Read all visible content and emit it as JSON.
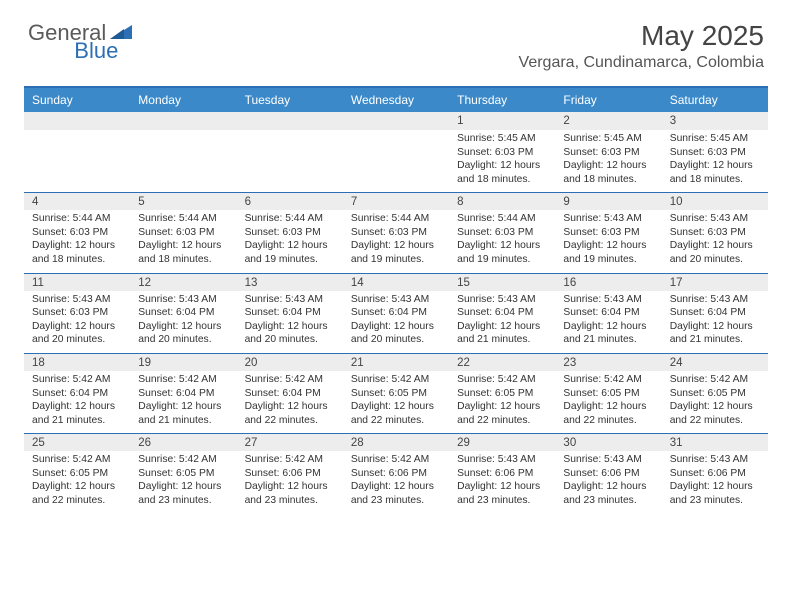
{
  "logo": {
    "text1": "General",
    "text2": "Blue"
  },
  "title": "May 2025",
  "location": "Vergara, Cundinamarca, Colombia",
  "colors": {
    "header_bg": "#3b89c9",
    "border": "#2c6fb5",
    "daynum_bg": "#ededed",
    "logo_gray": "#5a5a5a",
    "logo_blue": "#2c6fb5"
  },
  "day_names": [
    "Sunday",
    "Monday",
    "Tuesday",
    "Wednesday",
    "Thursday",
    "Friday",
    "Saturday"
  ],
  "weeks": [
    [
      null,
      null,
      null,
      null,
      {
        "n": "1",
        "sr": "5:45 AM",
        "ss": "6:03 PM",
        "dl": "12 hours and 18 minutes."
      },
      {
        "n": "2",
        "sr": "5:45 AM",
        "ss": "6:03 PM",
        "dl": "12 hours and 18 minutes."
      },
      {
        "n": "3",
        "sr": "5:45 AM",
        "ss": "6:03 PM",
        "dl": "12 hours and 18 minutes."
      }
    ],
    [
      {
        "n": "4",
        "sr": "5:44 AM",
        "ss": "6:03 PM",
        "dl": "12 hours and 18 minutes."
      },
      {
        "n": "5",
        "sr": "5:44 AM",
        "ss": "6:03 PM",
        "dl": "12 hours and 18 minutes."
      },
      {
        "n": "6",
        "sr": "5:44 AM",
        "ss": "6:03 PM",
        "dl": "12 hours and 19 minutes."
      },
      {
        "n": "7",
        "sr": "5:44 AM",
        "ss": "6:03 PM",
        "dl": "12 hours and 19 minutes."
      },
      {
        "n": "8",
        "sr": "5:44 AM",
        "ss": "6:03 PM",
        "dl": "12 hours and 19 minutes."
      },
      {
        "n": "9",
        "sr": "5:43 AM",
        "ss": "6:03 PM",
        "dl": "12 hours and 19 minutes."
      },
      {
        "n": "10",
        "sr": "5:43 AM",
        "ss": "6:03 PM",
        "dl": "12 hours and 20 minutes."
      }
    ],
    [
      {
        "n": "11",
        "sr": "5:43 AM",
        "ss": "6:03 PM",
        "dl": "12 hours and 20 minutes."
      },
      {
        "n": "12",
        "sr": "5:43 AM",
        "ss": "6:04 PM",
        "dl": "12 hours and 20 minutes."
      },
      {
        "n": "13",
        "sr": "5:43 AM",
        "ss": "6:04 PM",
        "dl": "12 hours and 20 minutes."
      },
      {
        "n": "14",
        "sr": "5:43 AM",
        "ss": "6:04 PM",
        "dl": "12 hours and 20 minutes."
      },
      {
        "n": "15",
        "sr": "5:43 AM",
        "ss": "6:04 PM",
        "dl": "12 hours and 21 minutes."
      },
      {
        "n": "16",
        "sr": "5:43 AM",
        "ss": "6:04 PM",
        "dl": "12 hours and 21 minutes."
      },
      {
        "n": "17",
        "sr": "5:43 AM",
        "ss": "6:04 PM",
        "dl": "12 hours and 21 minutes."
      }
    ],
    [
      {
        "n": "18",
        "sr": "5:42 AM",
        "ss": "6:04 PM",
        "dl": "12 hours and 21 minutes."
      },
      {
        "n": "19",
        "sr": "5:42 AM",
        "ss": "6:04 PM",
        "dl": "12 hours and 21 minutes."
      },
      {
        "n": "20",
        "sr": "5:42 AM",
        "ss": "6:04 PM",
        "dl": "12 hours and 22 minutes."
      },
      {
        "n": "21",
        "sr": "5:42 AM",
        "ss": "6:05 PM",
        "dl": "12 hours and 22 minutes."
      },
      {
        "n": "22",
        "sr": "5:42 AM",
        "ss": "6:05 PM",
        "dl": "12 hours and 22 minutes."
      },
      {
        "n": "23",
        "sr": "5:42 AM",
        "ss": "6:05 PM",
        "dl": "12 hours and 22 minutes."
      },
      {
        "n": "24",
        "sr": "5:42 AM",
        "ss": "6:05 PM",
        "dl": "12 hours and 22 minutes."
      }
    ],
    [
      {
        "n": "25",
        "sr": "5:42 AM",
        "ss": "6:05 PM",
        "dl": "12 hours and 22 minutes."
      },
      {
        "n": "26",
        "sr": "5:42 AM",
        "ss": "6:05 PM",
        "dl": "12 hours and 23 minutes."
      },
      {
        "n": "27",
        "sr": "5:42 AM",
        "ss": "6:06 PM",
        "dl": "12 hours and 23 minutes."
      },
      {
        "n": "28",
        "sr": "5:42 AM",
        "ss": "6:06 PM",
        "dl": "12 hours and 23 minutes."
      },
      {
        "n": "29",
        "sr": "5:43 AM",
        "ss": "6:06 PM",
        "dl": "12 hours and 23 minutes."
      },
      {
        "n": "30",
        "sr": "5:43 AM",
        "ss": "6:06 PM",
        "dl": "12 hours and 23 minutes."
      },
      {
        "n": "31",
        "sr": "5:43 AM",
        "ss": "6:06 PM",
        "dl": "12 hours and 23 minutes."
      }
    ]
  ],
  "labels": {
    "sunrise": "Sunrise: ",
    "sunset": "Sunset: ",
    "daylight": "Daylight: "
  }
}
